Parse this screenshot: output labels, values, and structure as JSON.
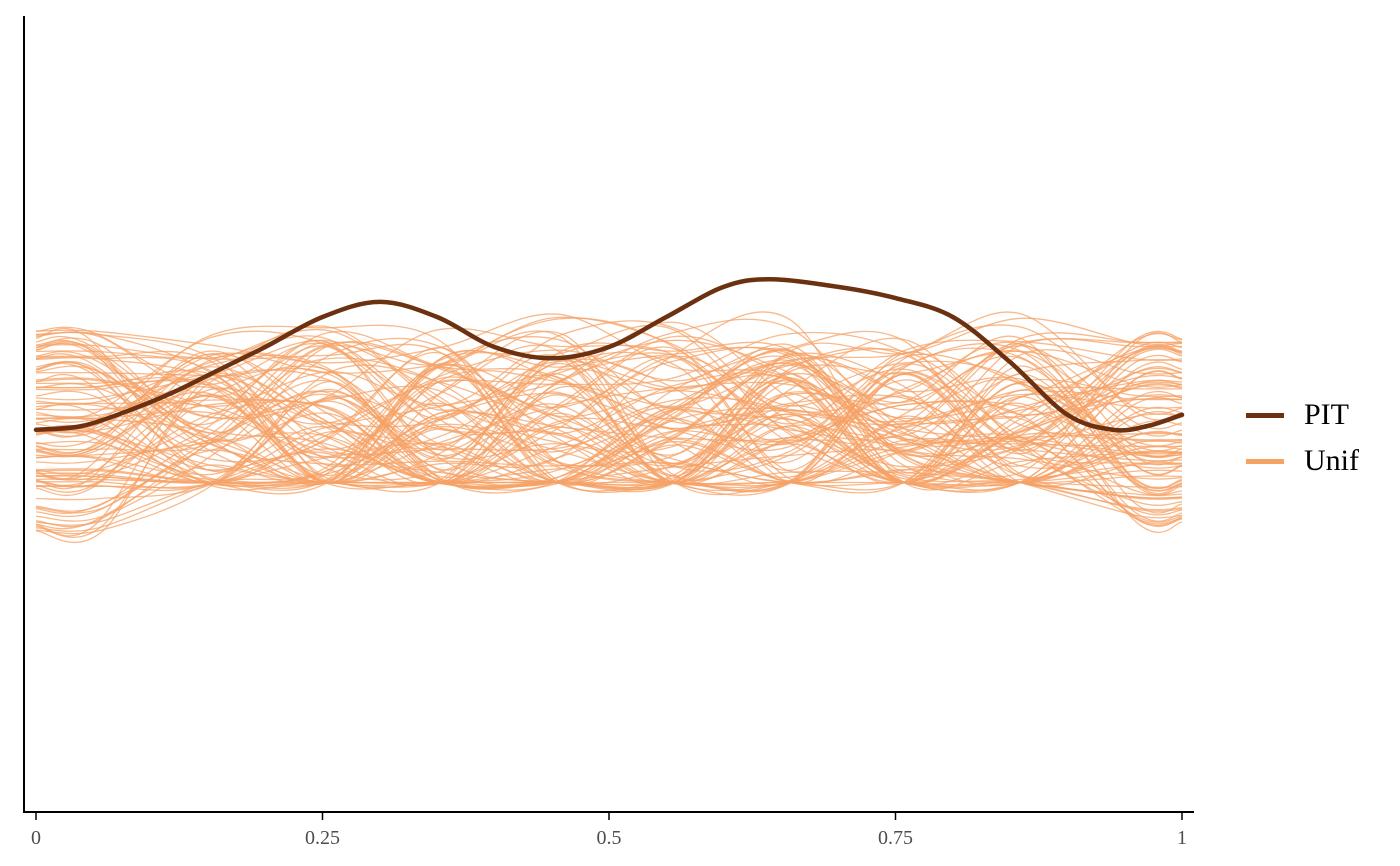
{
  "chart_data": {
    "type": "line",
    "title": "",
    "xlabel": "",
    "ylabel": "",
    "xlim": [
      0,
      1
    ],
    "ylim": [
      0,
      2.1
    ],
    "x_ticks": [
      "0",
      "0.25",
      "0.5",
      "0.75",
      "1"
    ],
    "x_tick_values": [
      0,
      0.25,
      0.5,
      0.75,
      1
    ],
    "y_axis_ticks_shown": false,
    "grid": false,
    "legend_position": "right",
    "series": [
      {
        "name": "PIT",
        "color": "#6b3110",
        "x": [
          0,
          0.04,
          0.08,
          0.12,
          0.16,
          0.2,
          0.25,
          0.3,
          0.35,
          0.4,
          0.45,
          0.5,
          0.55,
          0.6,
          0.64,
          0.7,
          0.75,
          0.8,
          0.85,
          0.9,
          0.94,
          0.97,
          1.0
        ],
        "y": [
          1.0,
          1.01,
          1.05,
          1.1,
          1.16,
          1.22,
          1.3,
          1.34,
          1.3,
          1.22,
          1.19,
          1.22,
          1.3,
          1.38,
          1.4,
          1.38,
          1.35,
          1.3,
          1.18,
          1.04,
          1.0,
          1.01,
          1.04
        ]
      }
    ],
    "simulated_reference": {
      "name": "Unif",
      "color": "#f6a265",
      "line_count": 100,
      "y_range": [
        0.86,
        1.57
      ]
    }
  },
  "legend": {
    "items": [
      {
        "label": "PIT",
        "color": "#6b3110"
      },
      {
        "label": "Unif",
        "color": "#f6a265"
      }
    ]
  }
}
